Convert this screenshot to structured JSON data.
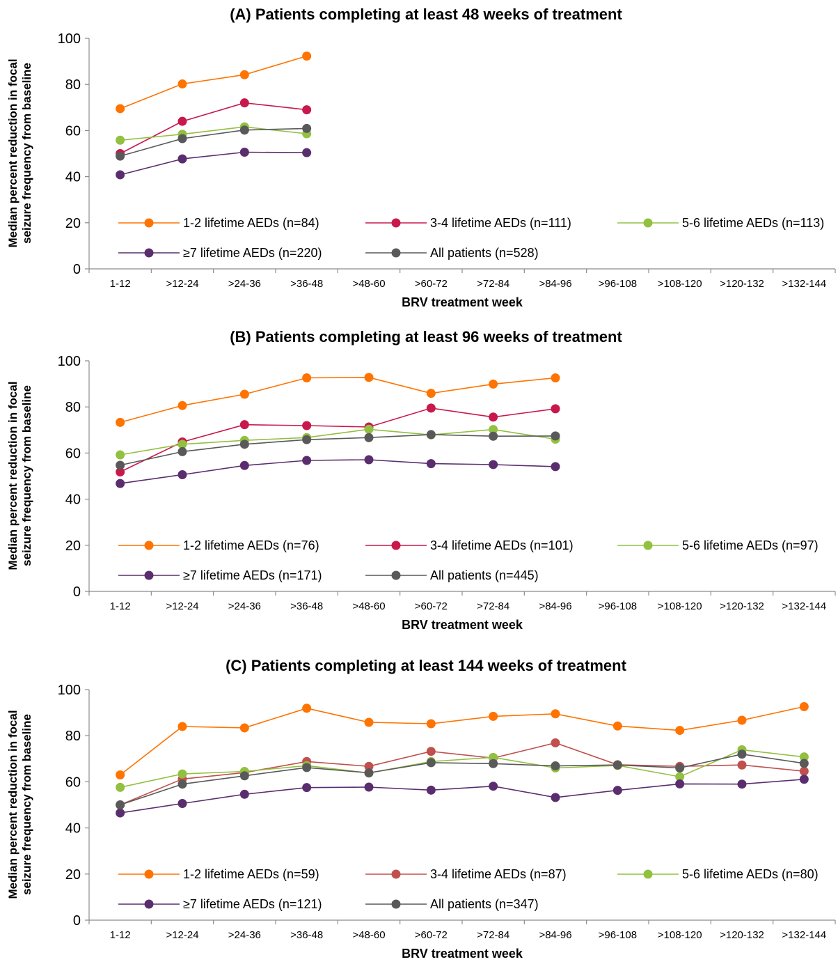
{
  "chart_data": [
    {
      "type": "line",
      "title": "(A) Patients completing at least 48 weeks of treatment",
      "xlabel": "BRV treatment week",
      "ylabel": "Median percent reduction in focal seizure frequency from baseline",
      "ylim": [
        0,
        100
      ],
      "yticks": [
        0,
        20,
        40,
        60,
        80,
        100
      ],
      "grid": false,
      "legend_position": "bottom-inside",
      "categories": [
        "1-12",
        ">12-24",
        ">24-36",
        ">36-48",
        ">48-60",
        ">60-72",
        ">72-84",
        ">84-96",
        ">96-108",
        ">108-120",
        ">120-132",
        ">132-144"
      ],
      "series": [
        {
          "name": "1-2 lifetime AEDs (n=84)",
          "color": "#ff7300",
          "values": [
            69.5,
            80.2,
            84.2,
            92.3,
            null,
            null,
            null,
            null,
            null,
            null,
            null,
            null
          ]
        },
        {
          "name": "3-4 lifetime AEDs (n=111)",
          "color": "#c8184c",
          "values": [
            50.0,
            64.0,
            72.0,
            69.0,
            null,
            null,
            null,
            null,
            null,
            null,
            null,
            null
          ]
        },
        {
          "name": "5-6 lifetime AEDs (n=113)",
          "color": "#92c040",
          "values": [
            55.8,
            58.4,
            61.6,
            58.6,
            null,
            null,
            null,
            null,
            null,
            null,
            null,
            null
          ]
        },
        {
          "name": "≥7 lifetime AEDs (n=220)",
          "color": "#5a2e6e",
          "values": [
            40.8,
            47.7,
            50.6,
            50.4,
            null,
            null,
            null,
            null,
            null,
            null,
            null,
            null
          ]
        },
        {
          "name": "All patients (n=528)",
          "color": "#595959",
          "values": [
            48.9,
            56.5,
            60.2,
            60.9,
            null,
            null,
            null,
            null,
            null,
            null,
            null,
            null
          ]
        }
      ]
    },
    {
      "type": "line",
      "title": "(B) Patients completing at least 96 weeks of treatment",
      "xlabel": "BRV treatment week",
      "ylabel": "Median percent reduction in focal seizure frequency from baseline",
      "ylim": [
        0,
        100
      ],
      "yticks": [
        0,
        20,
        40,
        60,
        80,
        100
      ],
      "grid": false,
      "legend_position": "bottom-inside",
      "categories": [
        "1-12",
        ">12-24",
        ">24-36",
        ">36-48",
        ">48-60",
        ">60-72",
        ">72-84",
        ">84-96",
        ">96-108",
        ">108-120",
        ">120-132",
        ">132-144"
      ],
      "series": [
        {
          "name": "1-2 lifetime AEDs (n=76)",
          "color": "#ff7300",
          "values": [
            73.3,
            80.6,
            85.5,
            92.6,
            92.8,
            85.9,
            89.9,
            92.6,
            null,
            null,
            null,
            null
          ]
        },
        {
          "name": "3-4 lifetime AEDs (n=101)",
          "color": "#c8184c",
          "values": [
            51.8,
            64.8,
            72.3,
            71.9,
            71.3,
            79.5,
            75.6,
            79.2,
            null,
            null,
            null,
            null
          ]
        },
        {
          "name": "5-6 lifetime AEDs (n=97)",
          "color": "#92c040",
          "values": [
            59.2,
            63.8,
            65.5,
            66.7,
            70.3,
            67.9,
            70.2,
            66.0,
            null,
            null,
            null,
            null
          ]
        },
        {
          "name": "≥7 lifetime AEDs (n=171)",
          "color": "#5a2e6e",
          "values": [
            46.8,
            50.6,
            54.6,
            56.8,
            57.1,
            55.4,
            55.0,
            54.1,
            null,
            null,
            null,
            null
          ]
        },
        {
          "name": "All patients (n=445)",
          "color": "#595959",
          "values": [
            54.7,
            60.6,
            63.8,
            65.8,
            66.7,
            68.0,
            67.3,
            67.4,
            null,
            null,
            null,
            null
          ]
        }
      ]
    },
    {
      "type": "line",
      "title": "(C) Patients completing at least 144 weeks of treatment",
      "xlabel": "BRV treatment week",
      "ylabel": "Median percent reduction in focal seizure frequency from baseline",
      "ylim": [
        0,
        100
      ],
      "yticks": [
        0,
        20,
        40,
        60,
        80,
        100
      ],
      "grid": false,
      "legend_position": "bottom-inside",
      "categories": [
        "1-12",
        ">12-24",
        ">24-36",
        ">36-48",
        ">48-60",
        ">60-72",
        ">72-84",
        ">84-96",
        ">96-108",
        ">108-120",
        ">120-132",
        ">132-144"
      ],
      "series": [
        {
          "name": "1-2 lifetime AEDs (n=59)",
          "color": "#ff7300",
          "values": [
            63.0,
            84.0,
            83.4,
            91.9,
            85.8,
            85.2,
            88.4,
            89.5,
            84.2,
            82.3,
            86.7,
            92.6
          ]
        },
        {
          "name": "3-4 lifetime AEDs (n=87)",
          "color": "#c0504d",
          "values": [
            50.0,
            61.2,
            64.0,
            68.8,
            66.7,
            73.2,
            70.3,
            76.9,
            67.4,
            66.7,
            67.3,
            64.6
          ]
        },
        {
          "name": "5-6 lifetime AEDs (n=80)",
          "color": "#92c040",
          "values": [
            57.6,
            63.4,
            64.5,
            67.0,
            63.8,
            68.8,
            70.6,
            66.0,
            67.1,
            62.2,
            73.9,
            70.8
          ]
        },
        {
          "name": "≥7 lifetime AEDs (n=121)",
          "color": "#5a2e6e",
          "values": [
            46.5,
            50.6,
            54.6,
            57.5,
            57.7,
            56.4,
            58.1,
            53.2,
            56.3,
            59.1,
            59.0,
            61.1
          ]
        },
        {
          "name": "All patients (n=347)",
          "color": "#595959",
          "values": [
            50.0,
            59.0,
            62.6,
            66.2,
            63.9,
            68.3,
            67.9,
            66.9,
            67.3,
            66.0,
            72.0,
            68.0
          ]
        }
      ]
    }
  ]
}
